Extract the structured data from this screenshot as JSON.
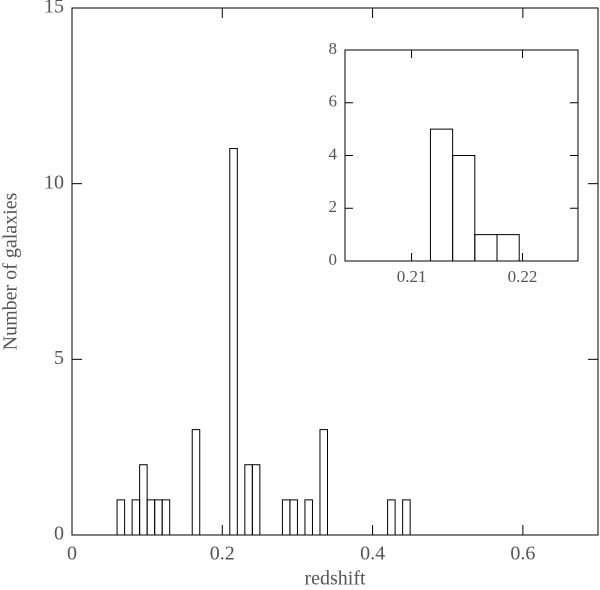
{
  "chart_data": [
    {
      "type": "histogram",
      "xlabel": "redshift",
      "ylabel": "Number of galaxies",
      "bins": [
        0,
        0.01,
        0.02,
        0.03,
        0.04,
        0.05,
        0.06,
        0.07,
        0.08,
        0.09,
        0.1,
        0.11,
        0.12,
        0.13,
        0.14,
        0.15,
        0.16,
        0.17,
        0.18,
        0.19,
        0.2,
        0.21,
        0.22,
        0.23,
        0.24,
        0.25,
        0.26,
        0.27,
        0.28,
        0.29,
        0.3,
        0.31,
        0.32,
        0.33,
        0.34,
        0.35,
        0.36,
        0.37,
        0.38,
        0.39,
        0.4,
        0.41,
        0.42,
        0.43,
        0.44,
        0.45,
        0.46,
        0.47,
        0.48,
        0.49,
        0.5,
        0.51,
        0.52,
        0.53,
        0.54,
        0.55,
        0.56,
        0.57,
        0.58,
        0.59,
        0.6,
        0.61,
        0.62,
        0.63,
        0.64,
        0.65,
        0.66,
        0.67,
        0.68,
        0.69,
        0.7
      ],
      "values": [
        0,
        0,
        0,
        0,
        0,
        0,
        1,
        0,
        1,
        2,
        1,
        1,
        1,
        0,
        0,
        0,
        3,
        0,
        0,
        0,
        0,
        11,
        0,
        2,
        2,
        0,
        0,
        0,
        1,
        1,
        0,
        1,
        0,
        3,
        0,
        0,
        0,
        0,
        0,
        0,
        0,
        0,
        1,
        0,
        1,
        0,
        0,
        0,
        0,
        0,
        0,
        0,
        0,
        0,
        0,
        0,
        0,
        0,
        0,
        0,
        0,
        0,
        0,
        0,
        0,
        0,
        0,
        0,
        0,
        0
      ],
      "color": "#000000",
      "xlim": [
        0,
        0.7
      ],
      "xticks": [
        0,
        0.2,
        0.4,
        0.6
      ],
      "ylim": [
        0,
        15
      ],
      "yticks": [
        0,
        5,
        10,
        15
      ]
    },
    {
      "type": "histogram",
      "bins": [
        0.2117,
        0.2137,
        0.2157,
        0.2177,
        0.2197
      ],
      "values": [
        5,
        4,
        1,
        1
      ],
      "color": "#000000",
      "xlim": [
        0.204,
        0.225
      ],
      "xticks": [
        0.21,
        0.22
      ],
      "ylim": [
        0,
        8
      ],
      "yticks": [
        0,
        2,
        4,
        6,
        8
      ]
    }
  ]
}
